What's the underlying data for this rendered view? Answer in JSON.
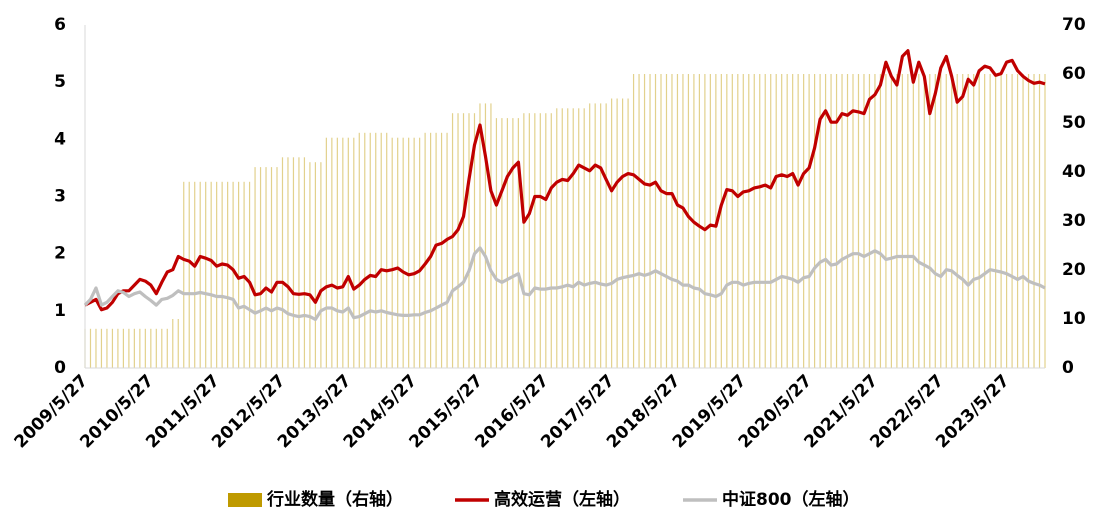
{
  "chart_data": {
    "type": "combo",
    "categories": [
      "2009/5/27",
      null,
      null,
      null,
      null,
      null,
      null,
      null,
      null,
      null,
      null,
      null,
      "2010/5/27",
      null,
      null,
      null,
      null,
      null,
      null,
      null,
      null,
      null,
      null,
      null,
      "2011/5/27",
      null,
      null,
      null,
      null,
      null,
      null,
      null,
      null,
      null,
      null,
      null,
      "2012/5/27",
      null,
      null,
      null,
      null,
      null,
      null,
      null,
      null,
      null,
      null,
      null,
      "2013/5/27",
      null,
      null,
      null,
      null,
      null,
      null,
      null,
      null,
      null,
      null,
      null,
      "2014/5/27",
      null,
      null,
      null,
      null,
      null,
      null,
      null,
      null,
      null,
      null,
      null,
      "2015/5/27",
      null,
      null,
      null,
      null,
      null,
      null,
      null,
      null,
      null,
      null,
      null,
      "2016/5/27",
      null,
      null,
      null,
      null,
      null,
      null,
      null,
      null,
      null,
      null,
      null,
      "2017/5/27",
      null,
      null,
      null,
      null,
      null,
      null,
      null,
      null,
      null,
      null,
      null,
      "2018/5/27",
      null,
      null,
      null,
      null,
      null,
      null,
      null,
      null,
      null,
      null,
      null,
      "2019/5/27",
      null,
      null,
      null,
      null,
      null,
      null,
      null,
      null,
      null,
      null,
      null,
      "2020/5/27",
      null,
      null,
      null,
      null,
      null,
      null,
      null,
      null,
      null,
      null,
      null,
      "2021/5/27",
      null,
      null,
      null,
      null,
      null,
      null,
      null,
      null,
      null,
      null,
      null,
      "2022/5/27",
      null,
      null,
      null,
      null,
      null,
      null,
      null,
      null,
      null,
      null,
      null,
      "2023/5/27",
      null,
      null,
      null,
      null,
      null,
      null,
      null
    ],
    "series": [
      {
        "name": "行业数量（右轴）",
        "type": "bar",
        "axis": "y2",
        "color": "#bf9a00",
        "values": [
          8,
          8,
          8,
          8,
          8,
          8,
          8,
          8,
          8,
          8,
          8,
          8,
          8,
          8,
          8,
          8,
          10,
          10,
          38,
          38,
          38,
          38,
          38,
          38,
          38,
          38,
          38,
          38,
          38,
          38,
          38,
          41,
          41,
          41,
          41,
          41,
          43,
          43,
          43,
          43,
          43,
          42,
          42,
          42,
          47,
          47,
          47,
          47,
          47,
          47,
          48,
          48,
          48,
          48,
          48,
          48,
          47,
          47,
          47,
          47,
          47,
          47,
          48,
          48,
          48,
          48,
          48,
          52,
          52,
          52,
          52,
          52,
          54,
          54,
          54,
          51,
          51,
          51,
          51,
          51,
          52,
          52,
          52,
          52,
          52,
          52,
          53,
          53,
          53,
          53,
          53,
          53,
          54,
          54,
          54,
          54,
          55,
          55,
          55,
          55,
          60,
          60,
          60,
          60,
          60,
          60,
          60,
          60,
          60,
          60,
          60,
          60,
          60,
          60,
          60,
          60,
          60,
          60,
          60,
          60,
          60,
          60,
          60,
          60,
          60,
          60,
          60,
          60,
          60,
          60,
          60,
          60,
          60,
          60,
          60,
          60,
          60,
          60,
          60,
          60,
          60,
          60,
          60,
          60,
          60,
          60,
          60,
          60,
          60,
          60,
          60,
          60,
          60,
          60,
          60,
          60,
          60,
          60,
          60,
          60,
          60,
          60,
          60,
          60,
          60,
          60,
          60,
          60,
          60,
          60,
          60,
          60,
          60,
          60,
          60,
          60
        ]
      },
      {
        "name": "高效运营（左轴）",
        "type": "line",
        "color": "#c00000",
        "values": [
          1.1,
          1.15,
          1.2,
          1.02,
          1.05,
          1.15,
          1.3,
          1.35,
          1.35,
          1.45,
          1.55,
          1.52,
          1.45,
          1.3,
          1.5,
          1.68,
          1.72,
          1.95,
          1.9,
          1.87,
          1.78,
          1.95,
          1.92,
          1.88,
          1.78,
          1.82,
          1.8,
          1.72,
          1.57,
          1.6,
          1.5,
          1.28,
          1.3,
          1.4,
          1.33,
          1.5,
          1.5,
          1.42,
          1.3,
          1.29,
          1.3,
          1.28,
          1.15,
          1.35,
          1.42,
          1.45,
          1.4,
          1.42,
          1.6,
          1.38,
          1.45,
          1.55,
          1.62,
          1.6,
          1.72,
          1.7,
          1.72,
          1.75,
          1.68,
          1.63,
          1.65,
          1.7,
          1.82,
          1.95,
          2.15,
          2.18,
          2.25,
          2.3,
          2.42,
          2.65,
          3.3,
          3.9,
          4.25,
          3.7,
          3.1,
          2.85,
          3.1,
          3.35,
          3.5,
          3.6,
          2.55,
          2.7,
          3.0,
          3.0,
          2.95,
          3.15,
          3.25,
          3.3,
          3.28,
          3.4,
          3.55,
          3.5,
          3.45,
          3.55,
          3.5,
          3.3,
          3.1,
          3.25,
          3.35,
          3.4,
          3.38,
          3.3,
          3.22,
          3.2,
          3.25,
          3.1,
          3.05,
          3.05,
          2.85,
          2.8,
          2.65,
          2.55,
          2.48,
          2.42,
          2.5,
          2.48,
          2.85,
          3.12,
          3.1,
          3.0,
          3.08,
          3.1,
          3.15,
          3.17,
          3.2,
          3.15,
          3.35,
          3.38,
          3.35,
          3.4,
          3.2,
          3.4,
          3.5,
          3.85,
          4.35,
          4.5,
          4.3,
          4.3,
          4.45,
          4.42,
          4.5,
          4.48,
          4.45,
          4.7,
          4.78,
          4.95,
          5.35,
          5.1,
          4.95,
          5.45,
          5.55,
          5.0,
          5.35,
          5.1,
          4.45,
          4.8,
          5.25,
          5.45,
          5.1,
          4.65,
          4.75,
          5.05,
          4.95,
          5.2,
          5.28,
          5.25,
          5.12,
          5.15,
          5.35,
          5.38,
          5.2,
          5.1,
          5.03,
          4.98,
          5.0,
          4.97
        ]
      },
      {
        "name": "中证800（左轴）",
        "type": "line",
        "color": "#bfbfbf",
        "values": [
          1.1,
          1.2,
          1.4,
          1.1,
          1.15,
          1.25,
          1.35,
          1.32,
          1.25,
          1.3,
          1.33,
          1.25,
          1.18,
          1.1,
          1.2,
          1.22,
          1.27,
          1.35,
          1.3,
          1.3,
          1.3,
          1.32,
          1.3,
          1.28,
          1.25,
          1.25,
          1.23,
          1.2,
          1.05,
          1.08,
          1.02,
          0.96,
          1.0,
          1.05,
          1.0,
          1.05,
          1.02,
          0.95,
          0.92,
          0.9,
          0.92,
          0.9,
          0.85,
          1.0,
          1.05,
          1.05,
          1.0,
          0.98,
          1.05,
          0.88,
          0.9,
          0.95,
          1.0,
          0.98,
          1.0,
          0.97,
          0.95,
          0.93,
          0.92,
          0.92,
          0.93,
          0.93,
          0.97,
          1.0,
          1.05,
          1.1,
          1.15,
          1.35,
          1.42,
          1.5,
          1.7,
          2.0,
          2.1,
          1.95,
          1.7,
          1.55,
          1.5,
          1.55,
          1.6,
          1.65,
          1.3,
          1.28,
          1.4,
          1.38,
          1.38,
          1.4,
          1.4,
          1.42,
          1.45,
          1.42,
          1.5,
          1.45,
          1.48,
          1.5,
          1.47,
          1.45,
          1.48,
          1.55,
          1.58,
          1.6,
          1.62,
          1.65,
          1.62,
          1.65,
          1.7,
          1.65,
          1.6,
          1.55,
          1.52,
          1.45,
          1.45,
          1.4,
          1.38,
          1.3,
          1.28,
          1.25,
          1.3,
          1.45,
          1.5,
          1.5,
          1.45,
          1.48,
          1.5,
          1.5,
          1.5,
          1.5,
          1.55,
          1.6,
          1.58,
          1.55,
          1.5,
          1.58,
          1.6,
          1.75,
          1.85,
          1.9,
          1.8,
          1.82,
          1.9,
          1.95,
          2.0,
          2.0,
          1.95,
          2.0,
          2.05,
          2.0,
          1.9,
          1.92,
          1.95,
          1.95,
          1.95,
          1.95,
          1.85,
          1.8,
          1.75,
          1.65,
          1.6,
          1.72,
          1.7,
          1.62,
          1.55,
          1.45,
          1.55,
          1.58,
          1.65,
          1.72,
          1.7,
          1.68,
          1.65,
          1.6,
          1.55,
          1.6,
          1.52,
          1.48,
          1.45,
          1.4
        ]
      }
    ],
    "ylim": [
      0,
      6
    ],
    "yticks": [
      0,
      1,
      2,
      3,
      4,
      5,
      6
    ],
    "y2lim": [
      0,
      70
    ],
    "y2ticks": [
      0,
      10,
      20,
      30,
      40,
      50,
      60,
      70
    ],
    "grid": false
  }
}
